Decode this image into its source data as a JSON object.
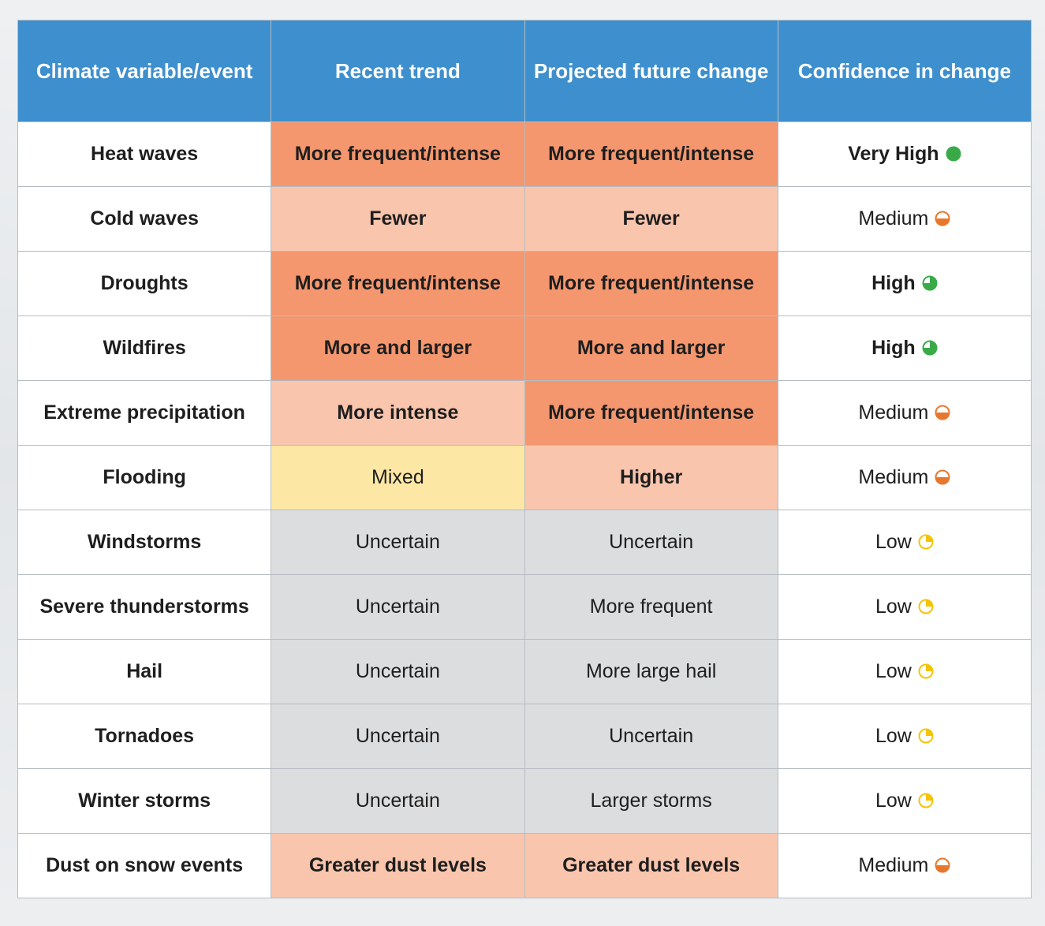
{
  "table": {
    "header": [
      "Climate variable/event",
      "Recent trend",
      "Projected future change",
      "Confidence in change"
    ],
    "rows": [
      [
        "Heat waves",
        "More frequent/intense",
        "More frequent/intense",
        "Very High"
      ],
      [
        "Cold waves",
        "Fewer",
        "Fewer",
        "Medium"
      ],
      [
        "Droughts",
        "More frequent/intense",
        "More frequent/intense",
        "High"
      ],
      [
        "Wildfires",
        "More and larger",
        "More and larger",
        "High"
      ],
      [
        "Extreme precipitation",
        "More intense",
        "More frequent/intense",
        "Medium"
      ],
      [
        "Flooding",
        "Mixed",
        "Higher",
        "Medium"
      ],
      [
        "Windstorms",
        "Uncertain",
        "Uncertain",
        "Low"
      ],
      [
        "Severe thunderstorms",
        "Uncertain",
        "More frequent",
        "Low"
      ],
      [
        "Hail",
        "Uncertain",
        "More large hail",
        "Low"
      ],
      [
        "Tornadoes",
        "Uncertain",
        "Uncertain",
        "Low"
      ],
      [
        "Winter storms",
        "Uncertain",
        "Larger storms",
        "Low"
      ],
      [
        "Dust on snow events",
        "Greater dust levels",
        "Greater dust levels",
        "Medium"
      ]
    ]
  }
}
